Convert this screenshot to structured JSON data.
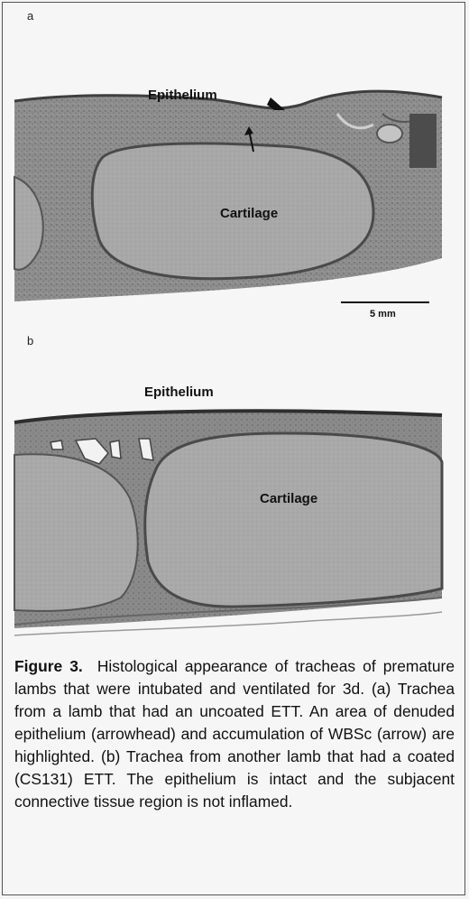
{
  "figure": {
    "panel_a": {
      "label": "a",
      "epithelium_label": "Epithelium",
      "cartilage_label": "Cartilage",
      "scale_bar_label": "5 mm"
    },
    "panel_b": {
      "label": "b",
      "epithelium_label": "Epithelium",
      "cartilage_label": "Cartilage"
    },
    "caption": {
      "heading": "Figure 3.",
      "text": "Histological appearance of tracheas of premature lambs that were intubated and ventilated for 3d.  (a) Trachea from a lamb that had an uncoated ETT.  An area of denuded epithelium (arrowhead) and accumulation of WBSc (arrow) are highlighted.  (b) Trachea from another lamb that had a coated (CS131) ETT.  The epithelium is intact and the subjacent connective tissue region is not inflamed."
    }
  },
  "colors": {
    "tissue_dark": "#6e6e6e",
    "tissue_mid": "#9a9a9a",
    "cartilage": "#a9a9a9",
    "background": "#f4f4f4"
  }
}
